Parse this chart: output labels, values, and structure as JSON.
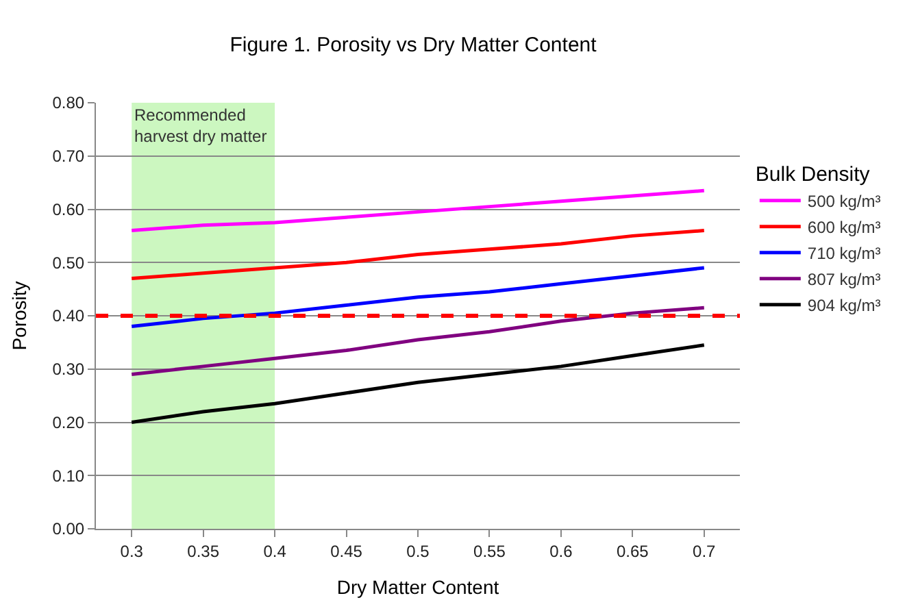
{
  "chart_data": {
    "type": "line",
    "title": "Figure 1. Porosity vs Dry Matter Content",
    "xlabel": "Dry Matter Content",
    "ylabel": "Porosity",
    "legend_title": "Bulk Density",
    "x": [
      0.3,
      0.35,
      0.4,
      0.45,
      0.5,
      0.55,
      0.6,
      0.65,
      0.7
    ],
    "series": [
      {
        "name": "500 kg/m³",
        "color": "#ff00ff",
        "values": [
          0.56,
          0.57,
          0.575,
          0.585,
          0.595,
          0.605,
          0.615,
          0.625,
          0.635
        ]
      },
      {
        "name": "600 kg/m³",
        "color": "#ff0000",
        "values": [
          0.47,
          0.48,
          0.49,
          0.5,
          0.515,
          0.525,
          0.535,
          0.55,
          0.56
        ]
      },
      {
        "name": "710 kg/m³",
        "color": "#0000ff",
        "values": [
          0.38,
          0.395,
          0.405,
          0.42,
          0.435,
          0.445,
          0.46,
          0.475,
          0.49
        ]
      },
      {
        "name": "807 kg/m³",
        "color": "#800080",
        "values": [
          0.29,
          0.305,
          0.32,
          0.335,
          0.355,
          0.37,
          0.39,
          0.405,
          0.415
        ]
      },
      {
        "name": "904 kg/m³",
        "color": "#000000",
        "values": [
          0.2,
          0.22,
          0.235,
          0.255,
          0.275,
          0.29,
          0.305,
          0.325,
          0.345
        ]
      }
    ],
    "xlim": [
      0.275,
      0.725
    ],
    "xticks": [
      0.3,
      0.35,
      0.4,
      0.45,
      0.5,
      0.55,
      0.6,
      0.65,
      0.7
    ],
    "ylim": [
      0,
      0.8
    ],
    "yticks": [
      {
        "value": 0,
        "label": "0.00"
      },
      {
        "value": 0.1,
        "label": "0.10"
      },
      {
        "value": 0.2,
        "label": "0.20"
      },
      {
        "value": 0.3,
        "label": "0.30"
      },
      {
        "value": 0.4,
        "label": "0.40"
      },
      {
        "value": 0.5,
        "label": "0.50"
      },
      {
        "value": 0.6,
        "label": "0.60"
      },
      {
        "value": 0.7,
        "label": "0.70"
      },
      {
        "value": 0.8,
        "label": "0.80"
      }
    ],
    "ref_lines": [
      {
        "axis": "y",
        "value": 0.4,
        "color": "#ff0000",
        "line_style": "dashed"
      }
    ],
    "bands": [
      {
        "axis": "x",
        "from": 0.3,
        "to": 0.4,
        "label": "Recommended harvest dry matter",
        "color": "#ccf7c0"
      }
    ],
    "grid": "y",
    "legend": "right",
    "marker": "none",
    "line_style": "solid"
  }
}
